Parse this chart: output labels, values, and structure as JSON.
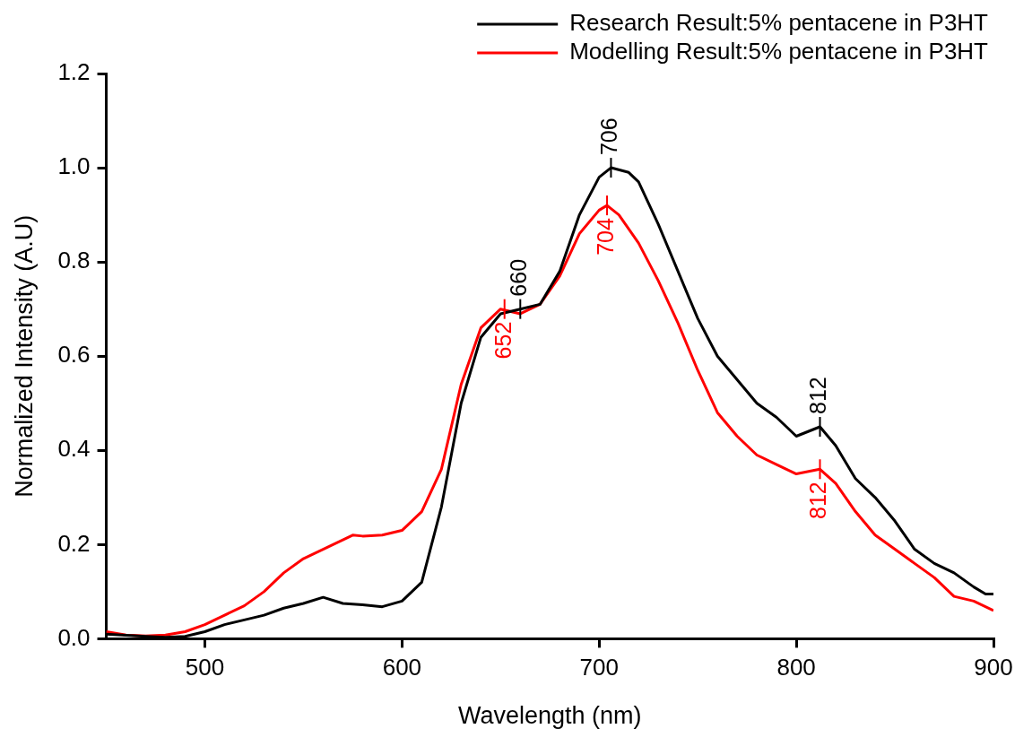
{
  "chart_data": {
    "type": "line",
    "xlabel": "Wavelength (nm)",
    "ylabel": "Normalized Intensity (A.U)",
    "xlim": [
      450,
      900
    ],
    "xticks": [
      500,
      600,
      700,
      800,
      900
    ],
    "ylim": [
      0,
      1.2
    ],
    "yticks": [
      {
        "value": 0,
        "label": "0.0"
      },
      0.2,
      0.4,
      0.6,
      0.8,
      {
        "value": 1,
        "label": "1.0"
      },
      1.2
    ],
    "grid": false,
    "legend": "top right",
    "marker": "none",
    "line_style": "solid",
    "series": [
      {
        "name": "Research Result:5% pentacene in P3HT",
        "color": "#000000",
        "x": [
          450,
          470,
          480,
          490,
          500,
          510,
          520,
          530,
          540,
          550,
          560,
          570,
          580,
          590,
          600,
          610,
          620,
          630,
          640,
          650,
          660,
          670,
          680,
          690,
          700,
          706,
          715,
          720,
          730,
          740,
          750,
          760,
          770,
          780,
          790,
          800,
          806,
          812,
          820,
          830,
          840,
          850,
          860,
          870,
          880,
          890,
          896,
          900
        ],
        "values": [
          0.01,
          0.005,
          0.003,
          0.005,
          0.015,
          0.03,
          0.04,
          0.05,
          0.065,
          0.075,
          0.088,
          0.075,
          0.072,
          0.068,
          0.08,
          0.12,
          0.28,
          0.5,
          0.64,
          0.69,
          0.7,
          0.71,
          0.78,
          0.9,
          0.98,
          1.0,
          0.99,
          0.97,
          0.88,
          0.78,
          0.68,
          0.6,
          0.55,
          0.5,
          0.47,
          0.43,
          0.44,
          0.45,
          0.41,
          0.34,
          0.3,
          0.25,
          0.19,
          0.16,
          0.14,
          0.11,
          0.095,
          0.095
        ]
      },
      {
        "name": "Modelling Result:5% pentacene in P3HT",
        "color": "#ff0000",
        "x": [
          450,
          460,
          470,
          480,
          490,
          500,
          510,
          520,
          530,
          540,
          550,
          560,
          570,
          575,
          580,
          590,
          600,
          610,
          620,
          630,
          640,
          650,
          660,
          670,
          680,
          690,
          700,
          704,
          710,
          720,
          730,
          740,
          750,
          760,
          770,
          780,
          790,
          800,
          812,
          820,
          830,
          840,
          850,
          860,
          870,
          880,
          890,
          900
        ],
        "values": [
          0.015,
          0.008,
          0.006,
          0.008,
          0.015,
          0.03,
          0.05,
          0.07,
          0.1,
          0.14,
          0.17,
          0.19,
          0.21,
          0.22,
          0.218,
          0.22,
          0.23,
          0.27,
          0.36,
          0.54,
          0.66,
          0.7,
          0.69,
          0.71,
          0.77,
          0.86,
          0.91,
          0.92,
          0.9,
          0.84,
          0.76,
          0.67,
          0.57,
          0.48,
          0.43,
          0.39,
          0.37,
          0.35,
          0.36,
          0.33,
          0.27,
          0.22,
          0.19,
          0.16,
          0.13,
          0.09,
          0.08,
          0.06
        ]
      }
    ],
    "annotations": [
      {
        "text": "706",
        "x": 706,
        "y": 1.0
      },
      {
        "text": "704",
        "x": 704,
        "y": 0.92
      },
      {
        "text": "660",
        "x": 660,
        "y": 0.7
      },
      {
        "text": "652",
        "x": 652,
        "y": 0.7
      },
      {
        "text": "812",
        "x": 812,
        "y": 0.45
      },
      {
        "text": "812",
        "x": 812,
        "y": 0.36
      }
    ]
  }
}
